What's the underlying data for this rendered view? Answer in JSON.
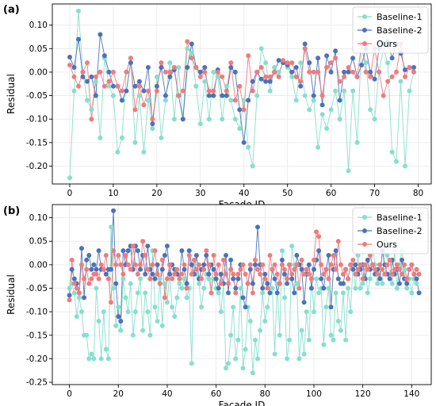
{
  "colors": {
    "baseline1": "#86dfcc",
    "baseline2": "#4a73b8",
    "ours": "#f07b7d",
    "grid": "#e8e8e8"
  },
  "chart_data": [
    {
      "panel_label": "(a)",
      "type": "line",
      "xlabel": "Facade ID",
      "ylabel": "Residual",
      "xlim": [
        -4,
        83
      ],
      "ylim": [
        -0.238,
        0.145
      ],
      "xticks": [
        0,
        10,
        20,
        30,
        40,
        50,
        60,
        70,
        80
      ],
      "yticks": [
        -0.2,
        -0.15,
        -0.1,
        -0.05,
        0.0,
        0.05,
        0.1
      ],
      "ytick_labels": [
        "-0.20",
        "-0.15",
        "-0.10",
        "-0.05",
        "0.00",
        "0.05",
        "0.10"
      ],
      "grid": true,
      "legend_position": "top-right",
      "x": [
        0,
        1,
        2,
        3,
        4,
        5,
        6,
        7,
        8,
        9,
        10,
        11,
        12,
        13,
        14,
        15,
        16,
        17,
        18,
        19,
        20,
        21,
        22,
        23,
        24,
        25,
        26,
        27,
        28,
        29,
        30,
        31,
        32,
        33,
        34,
        35,
        36,
        37,
        38,
        39,
        40,
        41,
        42,
        43,
        44,
        45,
        46,
        47,
        48,
        49,
        50,
        51,
        52,
        53,
        54,
        55,
        56,
        57,
        58,
        59,
        60,
        61,
        62,
        63,
        64,
        65,
        66,
        67,
        68,
        69,
        70,
        71,
        72,
        73,
        74,
        75,
        76,
        77,
        78,
        79
      ],
      "series": [
        {
          "name": "Baseline-1",
          "color_key": "baseline1",
          "values": [
            -0.225,
            -0.04,
            0.13,
            0.0,
            -0.06,
            -0.08,
            -0.02,
            -0.14,
            0.03,
            -0.03,
            -0.05,
            -0.17,
            -0.14,
            0.0,
            0.03,
            -0.15,
            -0.05,
            -0.17,
            -0.06,
            -0.12,
            -0.01,
            -0.14,
            -0.06,
            0.02,
            -0.1,
            0.01,
            -0.1,
            0.05,
            0.04,
            -0.03,
            -0.11,
            -0.02,
            -0.1,
            0.0,
            -0.01,
            -0.1,
            -0.03,
            -0.06,
            -0.1,
            -0.12,
            -0.06,
            -0.16,
            -0.2,
            -0.05,
            0.05,
            0.02,
            -0.04,
            0.01,
            0.0,
            0.02,
            0.01,
            -0.01,
            -0.06,
            0.02,
            -0.05,
            -0.08,
            -0.06,
            -0.16,
            -0.09,
            -0.12,
            -0.08,
            -0.04,
            -0.1,
            -0.04,
            -0.21,
            -0.04,
            -0.15,
            0.06,
            0.02,
            -0.08,
            -0.1,
            0.0,
            0.05,
            0.02,
            -0.17,
            -0.19,
            -0.02,
            -0.2,
            -0.04,
            0.0
          ]
        },
        {
          "name": "Baseline-2",
          "color_key": "baseline2",
          "values": [
            0.032,
            0.01,
            0.07,
            -0.01,
            -0.02,
            -0.01,
            -0.05,
            0.08,
            0.035,
            0.0,
            -0.03,
            -0.03,
            -0.06,
            -0.04,
            0.02,
            -0.03,
            -0.02,
            -0.04,
            0.01,
            -0.11,
            -0.03,
            0.01,
            -0.05,
            -0.01,
            0.005,
            -0.05,
            -0.1,
            0.01,
            0.06,
            0.01,
            0.0,
            0.01,
            -0.05,
            -0.05,
            0.005,
            -0.05,
            -0.05,
            0.01,
            0.0,
            -0.08,
            -0.15,
            -0.06,
            -0.02,
            0.0,
            -0.015,
            -0.02,
            -0.02,
            0.0,
            0.025,
            0.02,
            0.015,
            0.0,
            0.01,
            -0.03,
            0.06,
            0.02,
            -0.05,
            0.03,
            -0.07,
            0.035,
            0.0,
            0.045,
            -0.06,
            0.0,
            0.0,
            0.03,
            -0.01,
            0.015,
            0.05,
            0.0,
            -0.015,
            0.05,
            0.06,
            0.065,
            0.03,
            0.06,
            0.04,
            0.005,
            0.01,
            0.01
          ]
        },
        {
          "name": "Ours",
          "color_key": "ours",
          "values": [
            0.015,
            -0.01,
            -0.03,
            0.0,
            0.02,
            -0.1,
            -0.01,
            0.0,
            -0.03,
            -0.02,
            0.0,
            -0.03,
            -0.04,
            0.0,
            0.03,
            -0.08,
            -0.03,
            -0.07,
            -0.04,
            -0.1,
            -0.04,
            0.02,
            0.0,
            0.0,
            0.01,
            -0.05,
            -0.04,
            0.065,
            0.03,
            0.01,
            -0.01,
            0.0,
            -0.04,
            -0.04,
            0.0,
            -0.01,
            -0.04,
            0.02,
            -0.06,
            -0.03,
            -0.08,
            0.035,
            -0.04,
            0.0,
            0.01,
            -0.01,
            -0.01,
            0.0,
            -0.01,
            0.025,
            0.02,
            0.02,
            -0.01,
            -0.02,
            0.05,
            0.0,
            0.0,
            0.0,
            -0.05,
            0.01,
            0.02,
            0.03,
            -0.02,
            -0.01,
            0.01,
            0.0,
            -0.01,
            0.06,
            0.0,
            -0.01,
            0.05,
            0.0,
            -0.05,
            -0.02,
            -0.01,
            0.0,
            0.06,
            -0.01,
            0.01,
            0.0
          ]
        }
      ]
    },
    {
      "panel_label": "(b)",
      "type": "line",
      "xlabel": "Facade ID",
      "ylabel": "Residual",
      "xlim": [
        -7,
        148
      ],
      "ylim": [
        -0.255,
        0.128
      ],
      "xticks": [
        0,
        20,
        40,
        60,
        80,
        100,
        120,
        140
      ],
      "yticks": [
        -0.25,
        -0.2,
        -0.15,
        -0.1,
        -0.05,
        0.0,
        0.05,
        0.1
      ],
      "ytick_labels": [
        "-0.25",
        "-0.20",
        "-0.15",
        "-0.10",
        "-0.05",
        "0.00",
        "0.05",
        "0.10"
      ],
      "grid": true,
      "legend_position": "top-right",
      "x": [
        0,
        1,
        2,
        3,
        4,
        5,
        6,
        7,
        8,
        9,
        10,
        11,
        12,
        13,
        14,
        15,
        16,
        17,
        18,
        19,
        20,
        21,
        22,
        23,
        24,
        25,
        26,
        27,
        28,
        29,
        30,
        31,
        32,
        33,
        34,
        35,
        36,
        37,
        38,
        39,
        40,
        41,
        42,
        43,
        44,
        45,
        46,
        47,
        48,
        49,
        50,
        51,
        52,
        53,
        54,
        55,
        56,
        57,
        58,
        59,
        60,
        61,
        62,
        63,
        64,
        65,
        66,
        67,
        68,
        69,
        70,
        71,
        72,
        73,
        74,
        75,
        76,
        77,
        78,
        79,
        80,
        81,
        82,
        83,
        84,
        85,
        86,
        87,
        88,
        89,
        90,
        91,
        92,
        93,
        94,
        95,
        96,
        97,
        98,
        99,
        100,
        101,
        102,
        103,
        104,
        105,
        106,
        107,
        108,
        109,
        110,
        111,
        112,
        113,
        114,
        115,
        116,
        117,
        118,
        119,
        120,
        121,
        122,
        123,
        124,
        125,
        126,
        127,
        128,
        129,
        130,
        131,
        132,
        133,
        134,
        135,
        136,
        137,
        138,
        139,
        140,
        141,
        142,
        143
      ],
      "series": [
        {
          "name": "Baseline-1",
          "color_key": "baseline1",
          "values": [
            -0.05,
            -0.04,
            -0.06,
            -0.11,
            -0.07,
            -0.1,
            -0.15,
            -0.15,
            -0.2,
            -0.19,
            -0.2,
            -0.05,
            -0.12,
            -0.2,
            -0.1,
            -0.18,
            -0.2,
            0.08,
            -0.05,
            -0.13,
            -0.09,
            -0.14,
            -0.03,
            -0.07,
            -0.1,
            -0.04,
            -0.15,
            -0.1,
            -0.06,
            -0.03,
            -0.14,
            -0.06,
            -0.1,
            -0.15,
            0.03,
            -0.09,
            -0.12,
            -0.03,
            -0.13,
            -0.04,
            -0.08,
            -0.02,
            -0.09,
            -0.11,
            -0.07,
            -0.04,
            -0.05,
            -0.03,
            -0.07,
            -0.05,
            -0.21,
            0.0,
            -0.02,
            -0.04,
            -0.09,
            -0.05,
            -0.02,
            -0.03,
            -0.06,
            -0.03,
            -0.05,
            -0.06,
            -0.1,
            -0.04,
            -0.22,
            -0.21,
            -0.15,
            -0.09,
            -0.2,
            -0.16,
            -0.05,
            -0.22,
            -0.18,
            -0.09,
            -0.12,
            -0.23,
            -0.16,
            -0.2,
            -0.14,
            -0.06,
            -0.12,
            -0.09,
            -0.05,
            -0.05,
            -0.19,
            -0.04,
            -0.15,
            0.03,
            -0.07,
            -0.2,
            -0.16,
            0.04,
            0.0,
            -0.04,
            -0.2,
            -0.14,
            -0.19,
            -0.1,
            -0.16,
            -0.03,
            -0.1,
            -0.03,
            -0.06,
            -0.05,
            -0.17,
            -0.09,
            -0.05,
            -0.15,
            -0.16,
            -0.06,
            -0.12,
            -0.14,
            -0.06,
            -0.16,
            -0.05,
            -0.1,
            0.0,
            -0.05,
            0.02,
            -0.05,
            -0.04,
            0.0,
            -0.06,
            -0.03,
            0.04,
            0.0,
            -0.04,
            0.0,
            -0.04,
            0.05,
            0.02,
            -0.02,
            -0.04,
            0.03,
            -0.05,
            0.0,
            0.03,
            -0.01,
            -0.05,
            -0.03,
            -0.06,
            -0.03,
            -0.04,
            -0.02
          ]
        },
        {
          "name": "Baseline-2",
          "color_key": "baseline2",
          "values": [
            -0.065,
            -0.01,
            -0.03,
            -0.04,
            -0.06,
            0.035,
            -0.07,
            0.01,
            0.02,
            -0.01,
            0.0,
            -0.01,
            0.03,
            -0.01,
            -0.01,
            -0.02,
            -0.01,
            -0.01,
            0.115,
            -0.04,
            -0.11,
            -0.12,
            0.03,
            0.0,
            0.03,
            0.04,
            -0.01,
            0.04,
            0.03,
            -0.01,
            0.02,
            -0.02,
            0.04,
            -0.01,
            -0.02,
            -0.03,
            0.0,
            -0.04,
            -0.01,
            0.02,
            0.04,
            -0.02,
            0.0,
            -0.01,
            -0.02,
            -0.03,
            0.03,
            -0.01,
            -0.04,
            0.03,
            0.0,
            -0.02,
            0.02,
            -0.03,
            -0.01,
            0.0,
            0.02,
            -0.02,
            0.0,
            -0.01,
            -0.03,
            -0.05,
            -0.02,
            -0.04,
            0.02,
            -0.06,
            0.01,
            -0.03,
            -0.05,
            -0.03,
            0.0,
            -0.07,
            -0.09,
            -0.04,
            -0.01,
            -0.04,
            0.0,
            0.08,
            0.0,
            -0.05,
            -0.02,
            -0.04,
            -0.06,
            -0.01,
            -0.03,
            -0.06,
            -0.04,
            0.01,
            -0.02,
            -0.04,
            0.0,
            -0.03,
            -0.06,
            0.02,
            0.0,
            -0.01,
            -0.08,
            -0.02,
            0.0,
            -0.05,
            -0.01,
            0.01,
            0.03,
            -0.03,
            -0.05,
            -0.01,
            0.02,
            -0.09,
            -0.01,
            0.03,
            -0.03,
            -0.04,
            -0.04,
            -0.01,
            -0.03,
            0.0,
            -0.01,
            0.0,
            -0.02,
            -0.01,
            0.0,
            -0.03,
            0.01,
            -0.01,
            0.0,
            -0.02,
            -0.01,
            -0.03,
            0.03,
            0.0,
            -0.02,
            -0.03,
            0.01,
            -0.02,
            -0.01,
            -0.04,
            0.01,
            -0.03,
            -0.04,
            -0.01,
            0.0,
            -0.02,
            -0.03,
            -0.06
          ]
        },
        {
          "name": "Ours",
          "color_key": "ours",
          "values": [
            -0.075,
            0.01,
            -0.04,
            -0.05,
            -0.06,
            0.0,
            -0.03,
            -0.01,
            -0.04,
            -0.03,
            -0.02,
            -0.02,
            -0.03,
            0.0,
            -0.01,
            0.02,
            -0.03,
            -0.08,
            0.03,
            0.0,
            0.02,
            0.0,
            -0.02,
            0.02,
            0.0,
            -0.01,
            0.04,
            0.0,
            -0.02,
            0.0,
            0.05,
            0.02,
            -0.01,
            -0.03,
            0.0,
            0.03,
            -0.02,
            -0.04,
            0.01,
            -0.07,
            -0.03,
            0.0,
            -0.03,
            -0.02,
            -0.01,
            -0.03,
            -0.02,
            0.0,
            -0.05,
            0.02,
            -0.02,
            0.01,
            -0.01,
            0.0,
            -0.03,
            -0.01,
            0.03,
            0.0,
            -0.06,
            0.02,
            -0.02,
            0.0,
            -0.04,
            0.01,
            -0.02,
            -0.04,
            -0.01,
            -0.02,
            -0.06,
            -0.02,
            -0.01,
            0.0,
            -0.02,
            -0.04,
            0.0,
            -0.06,
            0.01,
            -0.01,
            -0.02,
            0.0,
            -0.03,
            -0.05,
            0.02,
            -0.01,
            0.0,
            -0.02,
            -0.04,
            0.0,
            -0.01,
            -0.03,
            0.0,
            -0.02,
            -0.01,
            0.0,
            -0.05,
            0.01,
            -0.02,
            -0.01,
            -0.02,
            -0.03,
            0.01,
            0.07,
            0.06,
            0.0,
            -0.02,
            -0.01,
            -0.03,
            0.0,
            0.02,
            -0.01,
            0.05,
            0.0,
            -0.02,
            -0.01,
            -0.03,
            0.0,
            0.01,
            -0.02,
            -0.01,
            0.0,
            -0.03,
            0.0,
            -0.01,
            0.02,
            0.0,
            -0.01,
            -0.02,
            0.0,
            -0.01,
            -0.02,
            0.0,
            0.01,
            -0.02,
            -0.01,
            0.0,
            -0.01,
            -0.02,
            0.0,
            -0.03,
            -0.01,
            0.0,
            -0.02,
            -0.01,
            -0.02
          ]
        }
      ]
    }
  ]
}
